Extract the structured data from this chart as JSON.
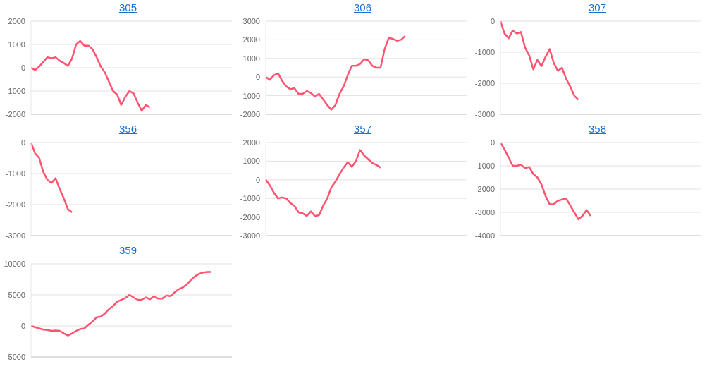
{
  "chart_data": [
    {
      "type": "line",
      "title": "305",
      "grid": "y",
      "tick_labels": "y",
      "ylim": [
        -2000,
        2000
      ],
      "yticks": [
        -2000,
        -1000,
        0,
        1000,
        2000
      ],
      "categories": [
        null,
        null,
        null,
        null,
        null,
        null,
        null,
        null,
        null,
        null,
        null,
        null,
        null,
        null,
        null,
        null,
        null,
        null,
        null,
        null,
        null,
        null,
        null,
        null,
        null,
        null,
        null,
        null,
        null,
        null,
        null,
        null,
        null,
        null,
        null,
        null,
        null,
        null,
        null,
        null,
        null,
        null,
        null,
        null,
        null,
        null,
        null,
        null,
        null,
        null
      ],
      "series": [
        {
          "color": "#ff5470",
          "values": [
            0,
            -100,
            50,
            250,
            450,
            400,
            450,
            300,
            200,
            80,
            400,
            1000,
            1150,
            950,
            950,
            800,
            450,
            50,
            -200,
            -600,
            -1000,
            -1150,
            -1600,
            -1250,
            -1000,
            -1100,
            -1500,
            -1850,
            -1600,
            -1700,
            null,
            null,
            null,
            null,
            null,
            null,
            null,
            null,
            null,
            null,
            null,
            null,
            null,
            null,
            null,
            null,
            null,
            null,
            null,
            null
          ]
        }
      ]
    },
    {
      "type": "line",
      "title": "306",
      "grid": "y",
      "tick_labels": "y",
      "ylim": [
        -2000,
        3000
      ],
      "yticks": [
        -2000,
        -1000,
        0,
        1000,
        2000,
        3000
      ],
      "categories": [
        null,
        null,
        null,
        null,
        null,
        null,
        null,
        null,
        null,
        null,
        null,
        null,
        null,
        null,
        null,
        null,
        null,
        null,
        null,
        null,
        null,
        null,
        null,
        null,
        null,
        null,
        null,
        null,
        null,
        null,
        null,
        null,
        null,
        null,
        null,
        null,
        null,
        null,
        null,
        null,
        null,
        null,
        null,
        null,
        null,
        null,
        null,
        null,
        null,
        null
      ],
      "series": [
        {
          "color": "#ff5470",
          "values": [
            0,
            -150,
            100,
            200,
            -200,
            -500,
            -650,
            -600,
            -900,
            -900,
            -750,
            -850,
            -1050,
            -900,
            -1200,
            -1500,
            -1750,
            -1500,
            -900,
            -500,
            100,
            600,
            600,
            700,
            950,
            900,
            600,
            500,
            500,
            1500,
            2100,
            2050,
            1950,
            2000,
            2200,
            null,
            null,
            null,
            null,
            null,
            null,
            null,
            null,
            null,
            null,
            null,
            null,
            null,
            null,
            null
          ]
        }
      ]
    },
    {
      "type": "line",
      "title": "307",
      "grid": "y",
      "tick_labels": "y",
      "ylim": [
        -3000,
        0
      ],
      "yticks": [
        -3000,
        -2000,
        -1000,
        0
      ],
      "categories": [
        null,
        null,
        null,
        null,
        null,
        null,
        null,
        null,
        null,
        null,
        null,
        null,
        null,
        null,
        null,
        null,
        null,
        null,
        null,
        null,
        null,
        null,
        null,
        null,
        null,
        null,
        null,
        null,
        null,
        null,
        null,
        null,
        null,
        null,
        null,
        null,
        null,
        null,
        null,
        null,
        null,
        null,
        null,
        null,
        null,
        null,
        null,
        null,
        null,
        null
      ],
      "series": [
        {
          "color": "#ff5470",
          "values": [
            0,
            -400,
            -550,
            -300,
            -400,
            -350,
            -850,
            -1100,
            -1550,
            -1250,
            -1450,
            -1150,
            -900,
            -1350,
            -1600,
            -1500,
            -1850,
            -2100,
            -2400,
            -2530,
            null,
            null,
            null,
            null,
            null,
            null,
            null,
            null,
            null,
            null,
            null,
            null,
            null,
            null,
            null,
            null,
            null,
            null,
            null,
            null,
            null,
            null,
            null,
            null,
            null,
            null,
            null,
            null,
            null,
            null
          ]
        }
      ]
    },
    {
      "type": "line",
      "title": "356",
      "grid": "y",
      "tick_labels": "y",
      "ylim": [
        -3000,
        0
      ],
      "yticks": [
        -3000,
        -2000,
        -1000,
        0
      ],
      "categories": [
        null,
        null,
        null,
        null,
        null,
        null,
        null,
        null,
        null,
        null,
        null,
        null,
        null,
        null,
        null,
        null,
        null,
        null,
        null,
        null,
        null,
        null,
        null,
        null,
        null,
        null,
        null,
        null,
        null,
        null,
        null,
        null,
        null,
        null,
        null,
        null,
        null,
        null,
        null,
        null,
        null,
        null,
        null,
        null,
        null,
        null,
        null,
        null,
        null,
        null
      ],
      "series": [
        {
          "color": "#ff5470",
          "values": [
            0,
            -350,
            -500,
            -950,
            -1200,
            -1300,
            -1150,
            -1500,
            -1800,
            -2150,
            -2250,
            null,
            null,
            null,
            null,
            null,
            null,
            null,
            null,
            null,
            null,
            null,
            null,
            null,
            null,
            null,
            null,
            null,
            null,
            null,
            null,
            null,
            null,
            null,
            null,
            null,
            null,
            null,
            null,
            null,
            null,
            null,
            null,
            null,
            null,
            null,
            null,
            null,
            null,
            null
          ]
        }
      ]
    },
    {
      "type": "line",
      "title": "357",
      "grid": "y",
      "tick_labels": "y",
      "ylim": [
        -3000,
        2000
      ],
      "yticks": [
        -3000,
        -2000,
        -1000,
        0,
        1000,
        2000
      ],
      "categories": [
        null,
        null,
        null,
        null,
        null,
        null,
        null,
        null,
        null,
        null,
        null,
        null,
        null,
        null,
        null,
        null,
        null,
        null,
        null,
        null,
        null,
        null,
        null,
        null,
        null,
        null,
        null,
        null,
        null,
        null,
        null,
        null,
        null,
        null,
        null,
        null,
        null,
        null,
        null,
        null,
        null,
        null,
        null,
        null,
        null,
        null,
        null,
        null,
        null,
        null
      ],
      "series": [
        {
          "color": "#ff5470",
          "values": [
            0,
            -300,
            -700,
            -1000,
            -950,
            -1000,
            -1250,
            -1400,
            -1750,
            -1800,
            -1950,
            -1700,
            -1950,
            -1900,
            -1400,
            -1000,
            -400,
            -100,
            300,
            650,
            950,
            700,
            1000,
            1600,
            1300,
            1100,
            900,
            800,
            650,
            null,
            null,
            null,
            null,
            null,
            null,
            null,
            null,
            null,
            null,
            null,
            null,
            null,
            null,
            null,
            null,
            null,
            null,
            null,
            null,
            null
          ]
        }
      ]
    },
    {
      "type": "line",
      "title": "358",
      "grid": "y",
      "tick_labels": "y",
      "ylim": [
        -4000,
        0
      ],
      "yticks": [
        -4000,
        -3000,
        -2000,
        -1000,
        0
      ],
      "categories": [
        null,
        null,
        null,
        null,
        null,
        null,
        null,
        null,
        null,
        null,
        null,
        null,
        null,
        null,
        null,
        null,
        null,
        null,
        null,
        null,
        null,
        null,
        null,
        null,
        null,
        null,
        null,
        null,
        null,
        null,
        null,
        null,
        null,
        null,
        null,
        null,
        null,
        null,
        null,
        null,
        null,
        null,
        null,
        null,
        null,
        null,
        null,
        null,
        null,
        null
      ],
      "series": [
        {
          "color": "#ff5470",
          "values": [
            0,
            -300,
            -650,
            -1000,
            -1000,
            -950,
            -1100,
            -1050,
            -1350,
            -1500,
            -1800,
            -2300,
            -2650,
            -2650,
            -2500,
            -2450,
            -2400,
            -2700,
            -3000,
            -3300,
            -3150,
            -2900,
            -3150,
            null,
            null,
            null,
            null,
            null,
            null,
            null,
            null,
            null,
            null,
            null,
            null,
            null,
            null,
            null,
            null,
            null,
            null,
            null,
            null,
            null,
            null,
            null,
            null,
            null,
            null,
            null
          ]
        }
      ]
    },
    {
      "type": "line",
      "title": "359",
      "grid": "y",
      "tick_labels": "y",
      "ylim": [
        -5000,
        10000
      ],
      "yticks": [
        -5000,
        0,
        5000,
        10000
      ],
      "categories": [
        null,
        null,
        null,
        null,
        null,
        null,
        null,
        null,
        null,
        null,
        null,
        null,
        null,
        null,
        null,
        null,
        null,
        null,
        null,
        null,
        null,
        null,
        null,
        null,
        null,
        null,
        null,
        null,
        null,
        null,
        null,
        null,
        null,
        null,
        null,
        null,
        null,
        null,
        null,
        null,
        null,
        null,
        null,
        null,
        null,
        null,
        null,
        null,
        null,
        null
      ],
      "series": [
        {
          "color": "#ff5470",
          "values": [
            0,
            -200,
            -400,
            -600,
            -650,
            -800,
            -750,
            -800,
            -1200,
            -1550,
            -1200,
            -800,
            -500,
            -400,
            200,
            700,
            1400,
            1500,
            2000,
            2700,
            3200,
            3900,
            4200,
            4500,
            5000,
            4600,
            4200,
            4200,
            4600,
            4300,
            4800,
            4400,
            4400,
            4900,
            4800,
            5400,
            5900,
            6200,
            6700,
            7400,
            8000,
            8400,
            8600,
            8700,
            8700,
            null,
            null,
            null,
            null,
            null
          ]
        }
      ]
    }
  ]
}
